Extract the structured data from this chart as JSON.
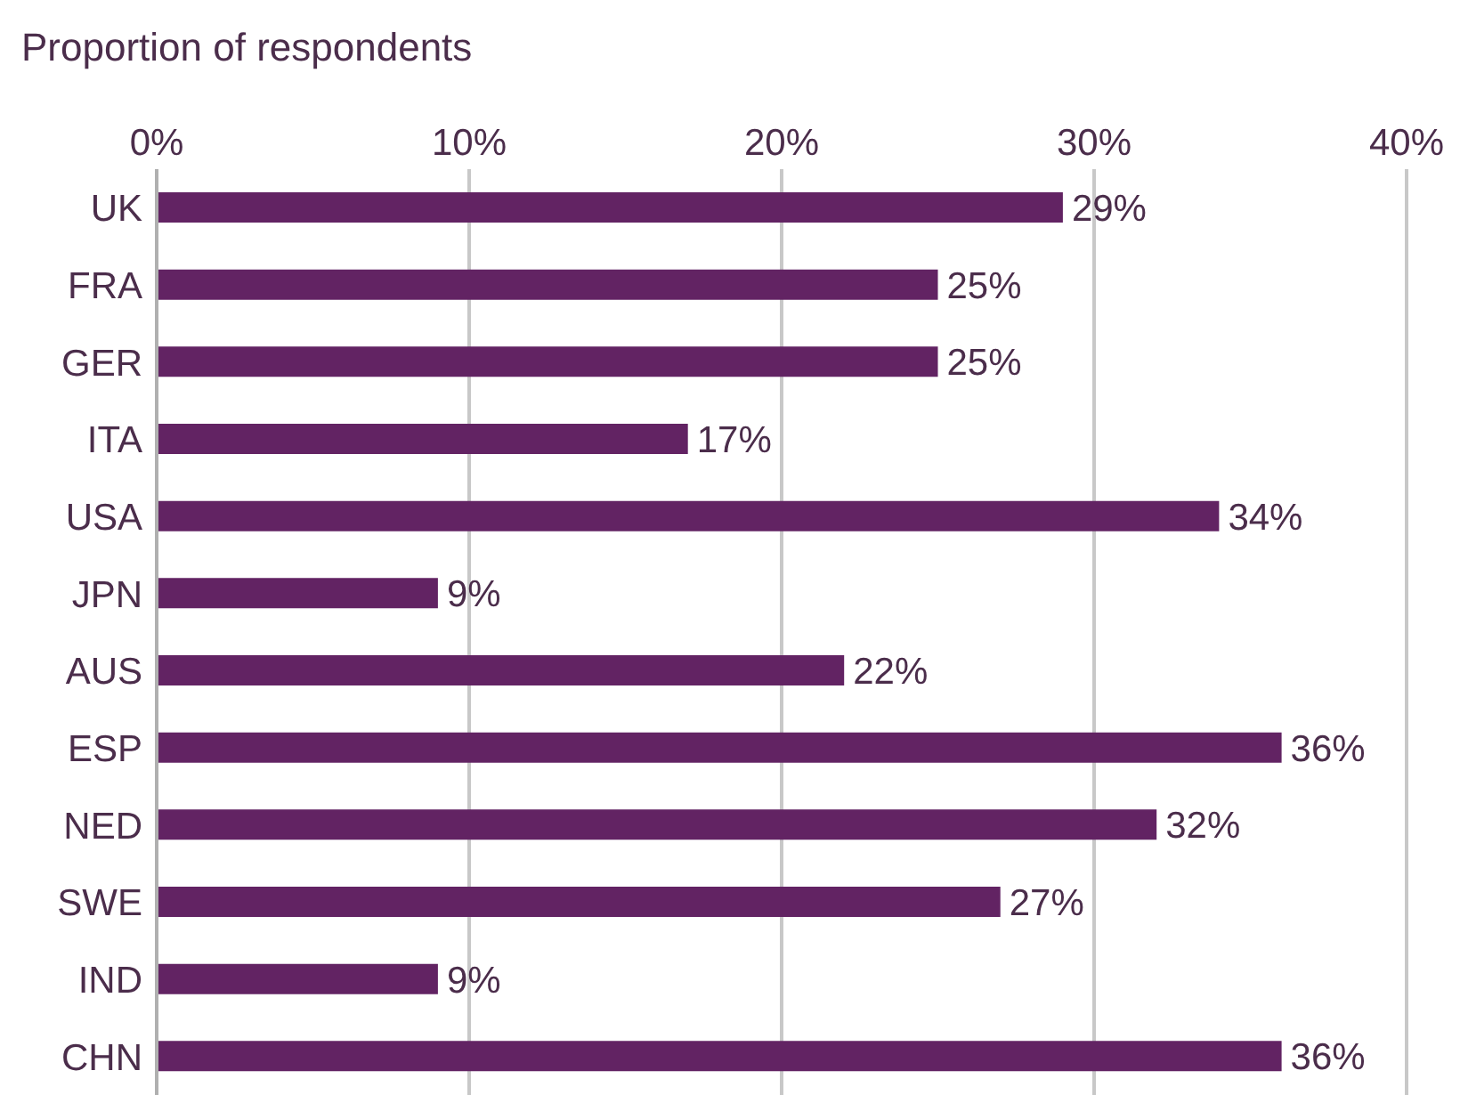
{
  "chart_data": {
    "type": "bar",
    "orientation": "horizontal",
    "xlabel": "Proportion of respondents",
    "categories": [
      "UK",
      "FRA",
      "GER",
      "ITA",
      "USA",
      "JPN",
      "AUS",
      "ESP",
      "NED",
      "SWE",
      "IND",
      "CHN"
    ],
    "values": [
      29,
      25,
      25,
      17,
      34,
      9,
      22,
      36,
      32,
      27,
      9,
      36
    ],
    "value_labels": [
      "29%",
      "25%",
      "25%",
      "17%",
      "34%",
      "9%",
      "22%",
      "36%",
      "32%",
      "27%",
      "9%",
      "36%"
    ],
    "color": "#622363",
    "xlim": [
      0,
      40
    ],
    "xticks": [
      {
        "value": 0,
        "label": "0%"
      },
      {
        "value": 10,
        "label": "10%"
      },
      {
        "value": 20,
        "label": "20%"
      },
      {
        "value": 30,
        "label": "30%"
      },
      {
        "value": 40,
        "label": "40%"
      }
    ],
    "grid": "x",
    "legend": false
  }
}
